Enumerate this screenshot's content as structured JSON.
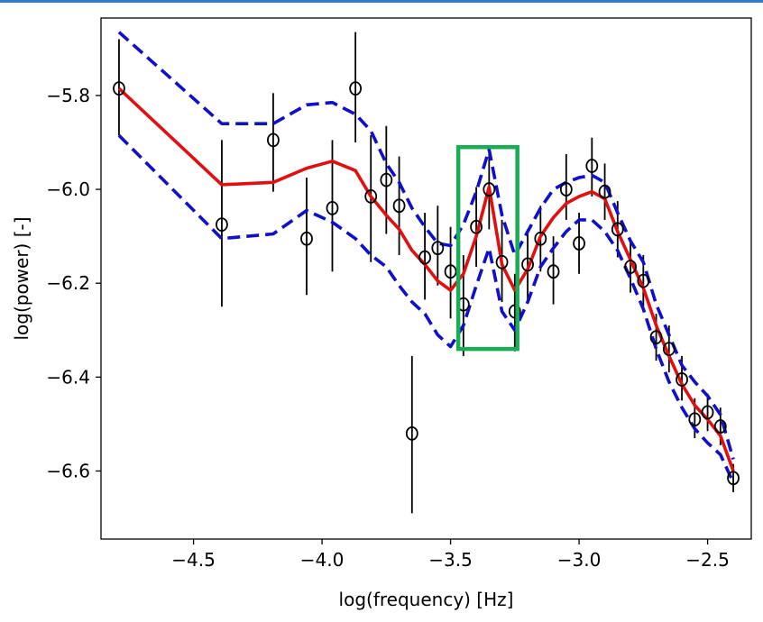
{
  "chart_data": {
    "type": "scatter",
    "title": "",
    "xlabel": "log(frequency) [Hz]",
    "ylabel": "log(power) [-]",
    "xlim": [
      -4.86,
      -2.33
    ],
    "ylim": [
      -6.745,
      -5.635
    ],
    "xticks": [
      -4.5,
      -4.0,
      -3.5,
      -3.0,
      -2.5
    ],
    "xtick_labels": [
      "−4.5",
      "−4.0",
      "−3.5",
      "−3.0",
      "−2.5"
    ],
    "yticks": [
      -5.8,
      -6.0,
      -6.2,
      -6.4,
      -6.6
    ],
    "ytick_labels": [
      "−5.8",
      "−6.0",
      "−6.2",
      "−6.4",
      "−6.6"
    ],
    "grid": false,
    "colors": {
      "data": "#000000",
      "model": "#e01010",
      "band": "#1010c8",
      "highlight": "#1aad55",
      "topbar": "#2b7bd3"
    },
    "data_points": [
      {
        "x": -4.79,
        "y": -5.785,
        "lo": -5.885,
        "hi": -5.68
      },
      {
        "x": -4.39,
        "y": -6.075,
        "lo": -6.25,
        "hi": -5.895
      },
      {
        "x": -4.19,
        "y": -5.895,
        "lo": -6.005,
        "hi": -5.795
      },
      {
        "x": -4.06,
        "y": -6.105,
        "lo": -6.225,
        "hi": -5.975
      },
      {
        "x": -3.96,
        "y": -6.04,
        "lo": -6.175,
        "hi": -5.895
      },
      {
        "x": -3.87,
        "y": -5.785,
        "lo": -5.9,
        "hi": -5.665
      },
      {
        "x": -3.81,
        "y": -6.015,
        "lo": -6.155,
        "hi": -5.885
      },
      {
        "x": -3.75,
        "y": -5.98,
        "lo": -6.095,
        "hi": -5.865
      },
      {
        "x": -3.7,
        "y": -6.035,
        "lo": -6.14,
        "hi": -5.93
      },
      {
        "x": -3.65,
        "y": -6.52,
        "lo": -6.69,
        "hi": -6.355
      },
      {
        "x": -3.6,
        "y": -6.145,
        "lo": -6.235,
        "hi": -6.05
      },
      {
        "x": -3.55,
        "y": -6.125,
        "lo": -6.205,
        "hi": -6.035
      },
      {
        "x": -3.5,
        "y": -6.175,
        "lo": -6.275,
        "hi": -6.08
      },
      {
        "x": -3.45,
        "y": -6.245,
        "lo": -6.355,
        "hi": -6.14
      },
      {
        "x": -3.4,
        "y": -6.08,
        "lo": -6.165,
        "hi": -5.995
      },
      {
        "x": -3.35,
        "y": -6.0,
        "lo": -6.085,
        "hi": -5.925
      },
      {
        "x": -3.3,
        "y": -6.155,
        "lo": -6.24,
        "hi": -6.065
      },
      {
        "x": -3.25,
        "y": -6.26,
        "lo": -6.345,
        "hi": -6.18
      },
      {
        "x": -3.2,
        "y": -6.16,
        "lo": -6.235,
        "hi": -6.085
      },
      {
        "x": -3.15,
        "y": -6.105,
        "lo": -6.175,
        "hi": -6.035
      },
      {
        "x": -3.1,
        "y": -6.175,
        "lo": -6.245,
        "hi": -6.1
      },
      {
        "x": -3.05,
        "y": -6.0,
        "lo": -6.065,
        "hi": -5.925
      },
      {
        "x": -3.0,
        "y": -6.115,
        "lo": -6.18,
        "hi": -6.05
      },
      {
        "x": -2.95,
        "y": -5.95,
        "lo": -6.015,
        "hi": -5.89
      },
      {
        "x": -2.9,
        "y": -6.005,
        "lo": -6.065,
        "hi": -5.945
      },
      {
        "x": -2.85,
        "y": -6.085,
        "lo": -6.145,
        "hi": -6.025
      },
      {
        "x": -2.8,
        "y": -6.165,
        "lo": -6.22,
        "hi": -6.105
      },
      {
        "x": -2.75,
        "y": -6.195,
        "lo": -6.25,
        "hi": -6.14
      },
      {
        "x": -2.7,
        "y": -6.315,
        "lo": -6.365,
        "hi": -6.265
      },
      {
        "x": -2.65,
        "y": -6.34,
        "lo": -6.39,
        "hi": -6.29
      },
      {
        "x": -2.6,
        "y": -6.405,
        "lo": -6.45,
        "hi": -6.355
      },
      {
        "x": -2.55,
        "y": -6.49,
        "lo": -6.53,
        "hi": -6.445
      },
      {
        "x": -2.5,
        "y": -6.475,
        "lo": -6.515,
        "hi": -6.435
      },
      {
        "x": -2.45,
        "y": -6.505,
        "lo": -6.545,
        "hi": -6.465
      },
      {
        "x": -2.4,
        "y": -6.615,
        "lo": -6.645,
        "hi": -6.585
      }
    ],
    "model_line": [
      [
        -4.79,
        -5.785
      ],
      [
        -4.39,
        -5.99
      ],
      [
        -4.19,
        -5.985
      ],
      [
        -4.06,
        -5.955
      ],
      [
        -3.96,
        -5.94
      ],
      [
        -3.87,
        -5.96
      ],
      [
        -3.81,
        -6.015
      ],
      [
        -3.75,
        -6.055
      ],
      [
        -3.7,
        -6.085
      ],
      [
        -3.65,
        -6.13
      ],
      [
        -3.6,
        -6.16
      ],
      [
        -3.55,
        -6.195
      ],
      [
        -3.5,
        -6.215
      ],
      [
        -3.45,
        -6.18
      ],
      [
        -3.4,
        -6.1
      ],
      [
        -3.35,
        -5.995
      ],
      [
        -3.3,
        -6.16
      ],
      [
        -3.25,
        -6.215
      ],
      [
        -3.2,
        -6.17
      ],
      [
        -3.15,
        -6.1
      ],
      [
        -3.1,
        -6.06
      ],
      [
        -3.05,
        -6.03
      ],
      [
        -3.0,
        -6.015
      ],
      [
        -2.95,
        -6.005
      ],
      [
        -2.9,
        -6.02
      ],
      [
        -2.85,
        -6.09
      ],
      [
        -2.8,
        -6.15
      ],
      [
        -2.75,
        -6.21
      ],
      [
        -2.7,
        -6.29
      ],
      [
        -2.65,
        -6.355
      ],
      [
        -2.6,
        -6.415
      ],
      [
        -2.55,
        -6.46
      ],
      [
        -2.5,
        -6.49
      ],
      [
        -2.45,
        -6.525
      ],
      [
        -2.4,
        -6.6
      ]
    ],
    "upper_band": [
      [
        -4.79,
        -5.665
      ],
      [
        -4.39,
        -5.86
      ],
      [
        -4.19,
        -5.86
      ],
      [
        -4.06,
        -5.82
      ],
      [
        -3.96,
        -5.815
      ],
      [
        -3.87,
        -5.84
      ],
      [
        -3.81,
        -5.875
      ],
      [
        -3.75,
        -5.945
      ],
      [
        -3.7,
        -5.985
      ],
      [
        -3.65,
        -6.04
      ],
      [
        -3.6,
        -6.08
      ],
      [
        -3.55,
        -6.115
      ],
      [
        -3.5,
        -6.12
      ],
      [
        -3.45,
        -6.075
      ],
      [
        -3.4,
        -6.005
      ],
      [
        -3.35,
        -5.915
      ],
      [
        -3.3,
        -6.055
      ],
      [
        -3.25,
        -6.14
      ],
      [
        -3.2,
        -6.09
      ],
      [
        -3.15,
        -6.04
      ],
      [
        -3.1,
        -6.0
      ],
      [
        -3.05,
        -5.985
      ],
      [
        -3.0,
        -5.975
      ],
      [
        -2.95,
        -5.97
      ],
      [
        -2.9,
        -5.985
      ],
      [
        -2.85,
        -6.05
      ],
      [
        -2.8,
        -6.11
      ],
      [
        -2.75,
        -6.155
      ],
      [
        -2.7,
        -6.245
      ],
      [
        -2.65,
        -6.31
      ],
      [
        -2.6,
        -6.375
      ],
      [
        -2.55,
        -6.41
      ],
      [
        -2.5,
        -6.44
      ],
      [
        -2.45,
        -6.48
      ],
      [
        -2.4,
        -6.575
      ]
    ],
    "lower_band": [
      [
        -4.79,
        -5.885
      ],
      [
        -4.39,
        -6.105
      ],
      [
        -4.19,
        -6.095
      ],
      [
        -4.06,
        -6.045
      ],
      [
        -3.96,
        -6.07
      ],
      [
        -3.87,
        -6.105
      ],
      [
        -3.81,
        -6.14
      ],
      [
        -3.75,
        -6.165
      ],
      [
        -3.7,
        -6.205
      ],
      [
        -3.65,
        -6.24
      ],
      [
        -3.6,
        -6.265
      ],
      [
        -3.55,
        -6.31
      ],
      [
        -3.5,
        -6.335
      ],
      [
        -3.45,
        -6.29
      ],
      [
        -3.4,
        -6.205
      ],
      [
        -3.35,
        -6.125
      ],
      [
        -3.3,
        -6.26
      ],
      [
        -3.25,
        -6.3
      ],
      [
        -3.2,
        -6.24
      ],
      [
        -3.15,
        -6.165
      ],
      [
        -3.1,
        -6.125
      ],
      [
        -3.05,
        -6.09
      ],
      [
        -3.0,
        -6.065
      ],
      [
        -2.95,
        -6.065
      ],
      [
        -2.9,
        -6.09
      ],
      [
        -2.85,
        -6.13
      ],
      [
        -2.8,
        -6.19
      ],
      [
        -2.75,
        -6.255
      ],
      [
        -2.7,
        -6.34
      ],
      [
        -2.65,
        -6.41
      ],
      [
        -2.6,
        -6.465
      ],
      [
        -2.55,
        -6.51
      ],
      [
        -2.5,
        -6.54
      ],
      [
        -2.45,
        -6.565
      ],
      [
        -2.4,
        -6.625
      ]
    ],
    "highlight_box": {
      "x0": -3.47,
      "x1": -3.24,
      "y0": -6.34,
      "y1": -5.91
    }
  }
}
